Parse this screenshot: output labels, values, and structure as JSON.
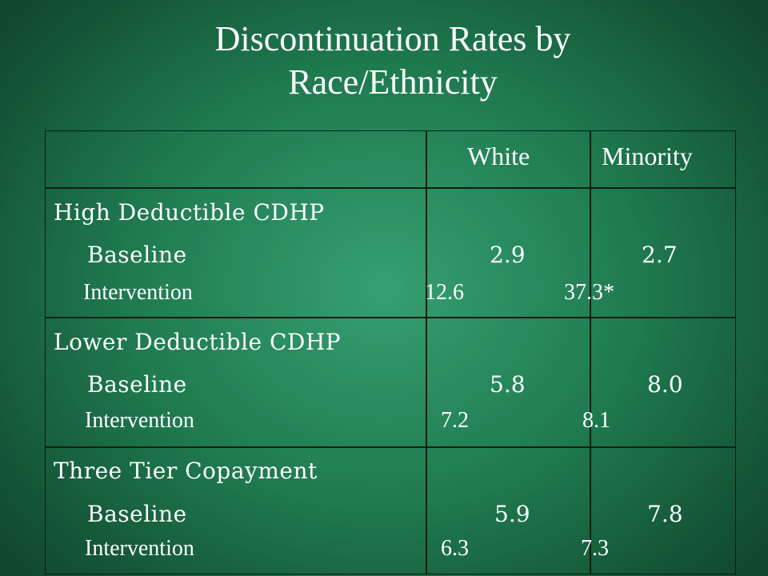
{
  "title": {
    "line1": "Discontinuation Rates by",
    "line2": "Race/Ethnicity"
  },
  "table": {
    "headers": [
      "",
      "White",
      "Minority"
    ],
    "groups": [
      {
        "name": "High Deductible CDHP",
        "baseline_label": "Baseline",
        "baseline": {
          "white": "2.9",
          "minority": "2.7"
        },
        "intervention_label": "Intervention",
        "intervention": {
          "white": "12.6",
          "minority": "37.3*"
        }
      },
      {
        "name": "Lower Deductible CDHP",
        "baseline_label": "Baseline",
        "baseline": {
          "white": "5.8",
          "minority": "8.0"
        },
        "intervention_label": "Intervention",
        "intervention": {
          "white": "7.2",
          "minority": "8.1"
        }
      },
      {
        "name": "Three Tier Copayment",
        "baseline_label": "Baseline",
        "baseline": {
          "white": "5.9",
          "minority": "7.8"
        },
        "intervention_label": "Intervention",
        "intervention": {
          "white": "6.3",
          "minority": "7.3"
        }
      }
    ]
  }
}
